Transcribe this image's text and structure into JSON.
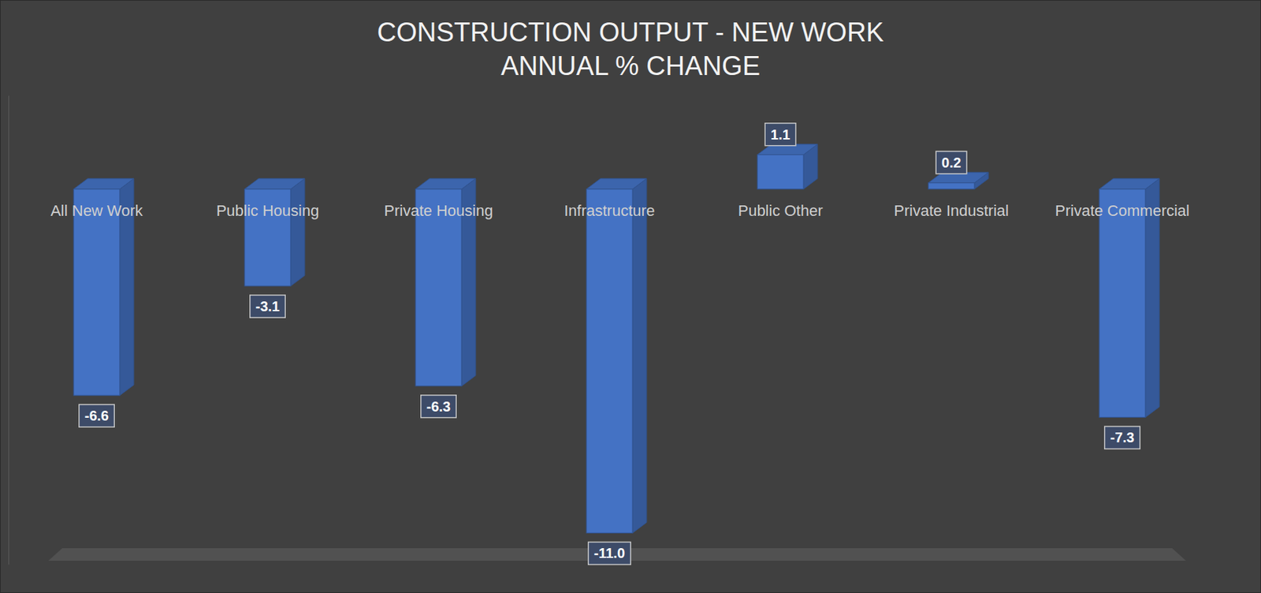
{
  "chart_data": {
    "type": "bar",
    "title": "CONSTRUCTION OUTPUT - NEW WORK",
    "subtitle": "ANNUAL % CHANGE",
    "categories": [
      "All New Work",
      "Public Housing",
      "Private Housing",
      "Infrastructure",
      "Public Other",
      "Private Industrial",
      "Private Commercial"
    ],
    "values": [
      -6.6,
      -3.1,
      -6.3,
      -11.0,
      1.1,
      0.2,
      -7.3
    ],
    "value_labels": [
      "-6.6",
      "-3.1",
      "-6.3",
      "-11.0",
      "1.1",
      "0.2",
      "-7.3"
    ],
    "color": "#4472c4",
    "ylim": [
      -12,
      3
    ],
    "grid": false,
    "data_labels": true,
    "tick_labels": false
  }
}
